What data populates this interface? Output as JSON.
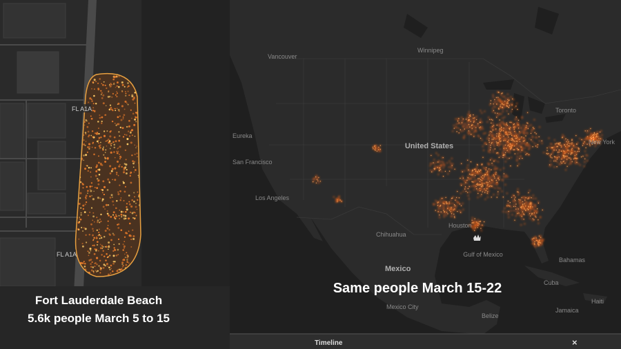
{
  "left_panel": {
    "road_labels": [
      "FL A1A",
      "FL A1A"
    ],
    "caption": [
      "Fort Lauderdale Beach",
      "5.6k people March 5 to 15"
    ]
  },
  "right_panel": {
    "map_labels": [
      "Vancouver",
      "Winnipeg",
      "Eureka",
      "San Francisco",
      "Los Angeles",
      "United States",
      "Toronto",
      "New York",
      "Houston",
      "Chihuahua",
      "Mexico",
      "Gulf of Mexico",
      "Bahamas",
      "Cuba",
      "Haiti",
      "Jamaica",
      "Mexico City",
      "Belize"
    ],
    "caption": "Same people March 15-22"
  },
  "timeline": {
    "title": "Timeline",
    "close": "×"
  }
}
